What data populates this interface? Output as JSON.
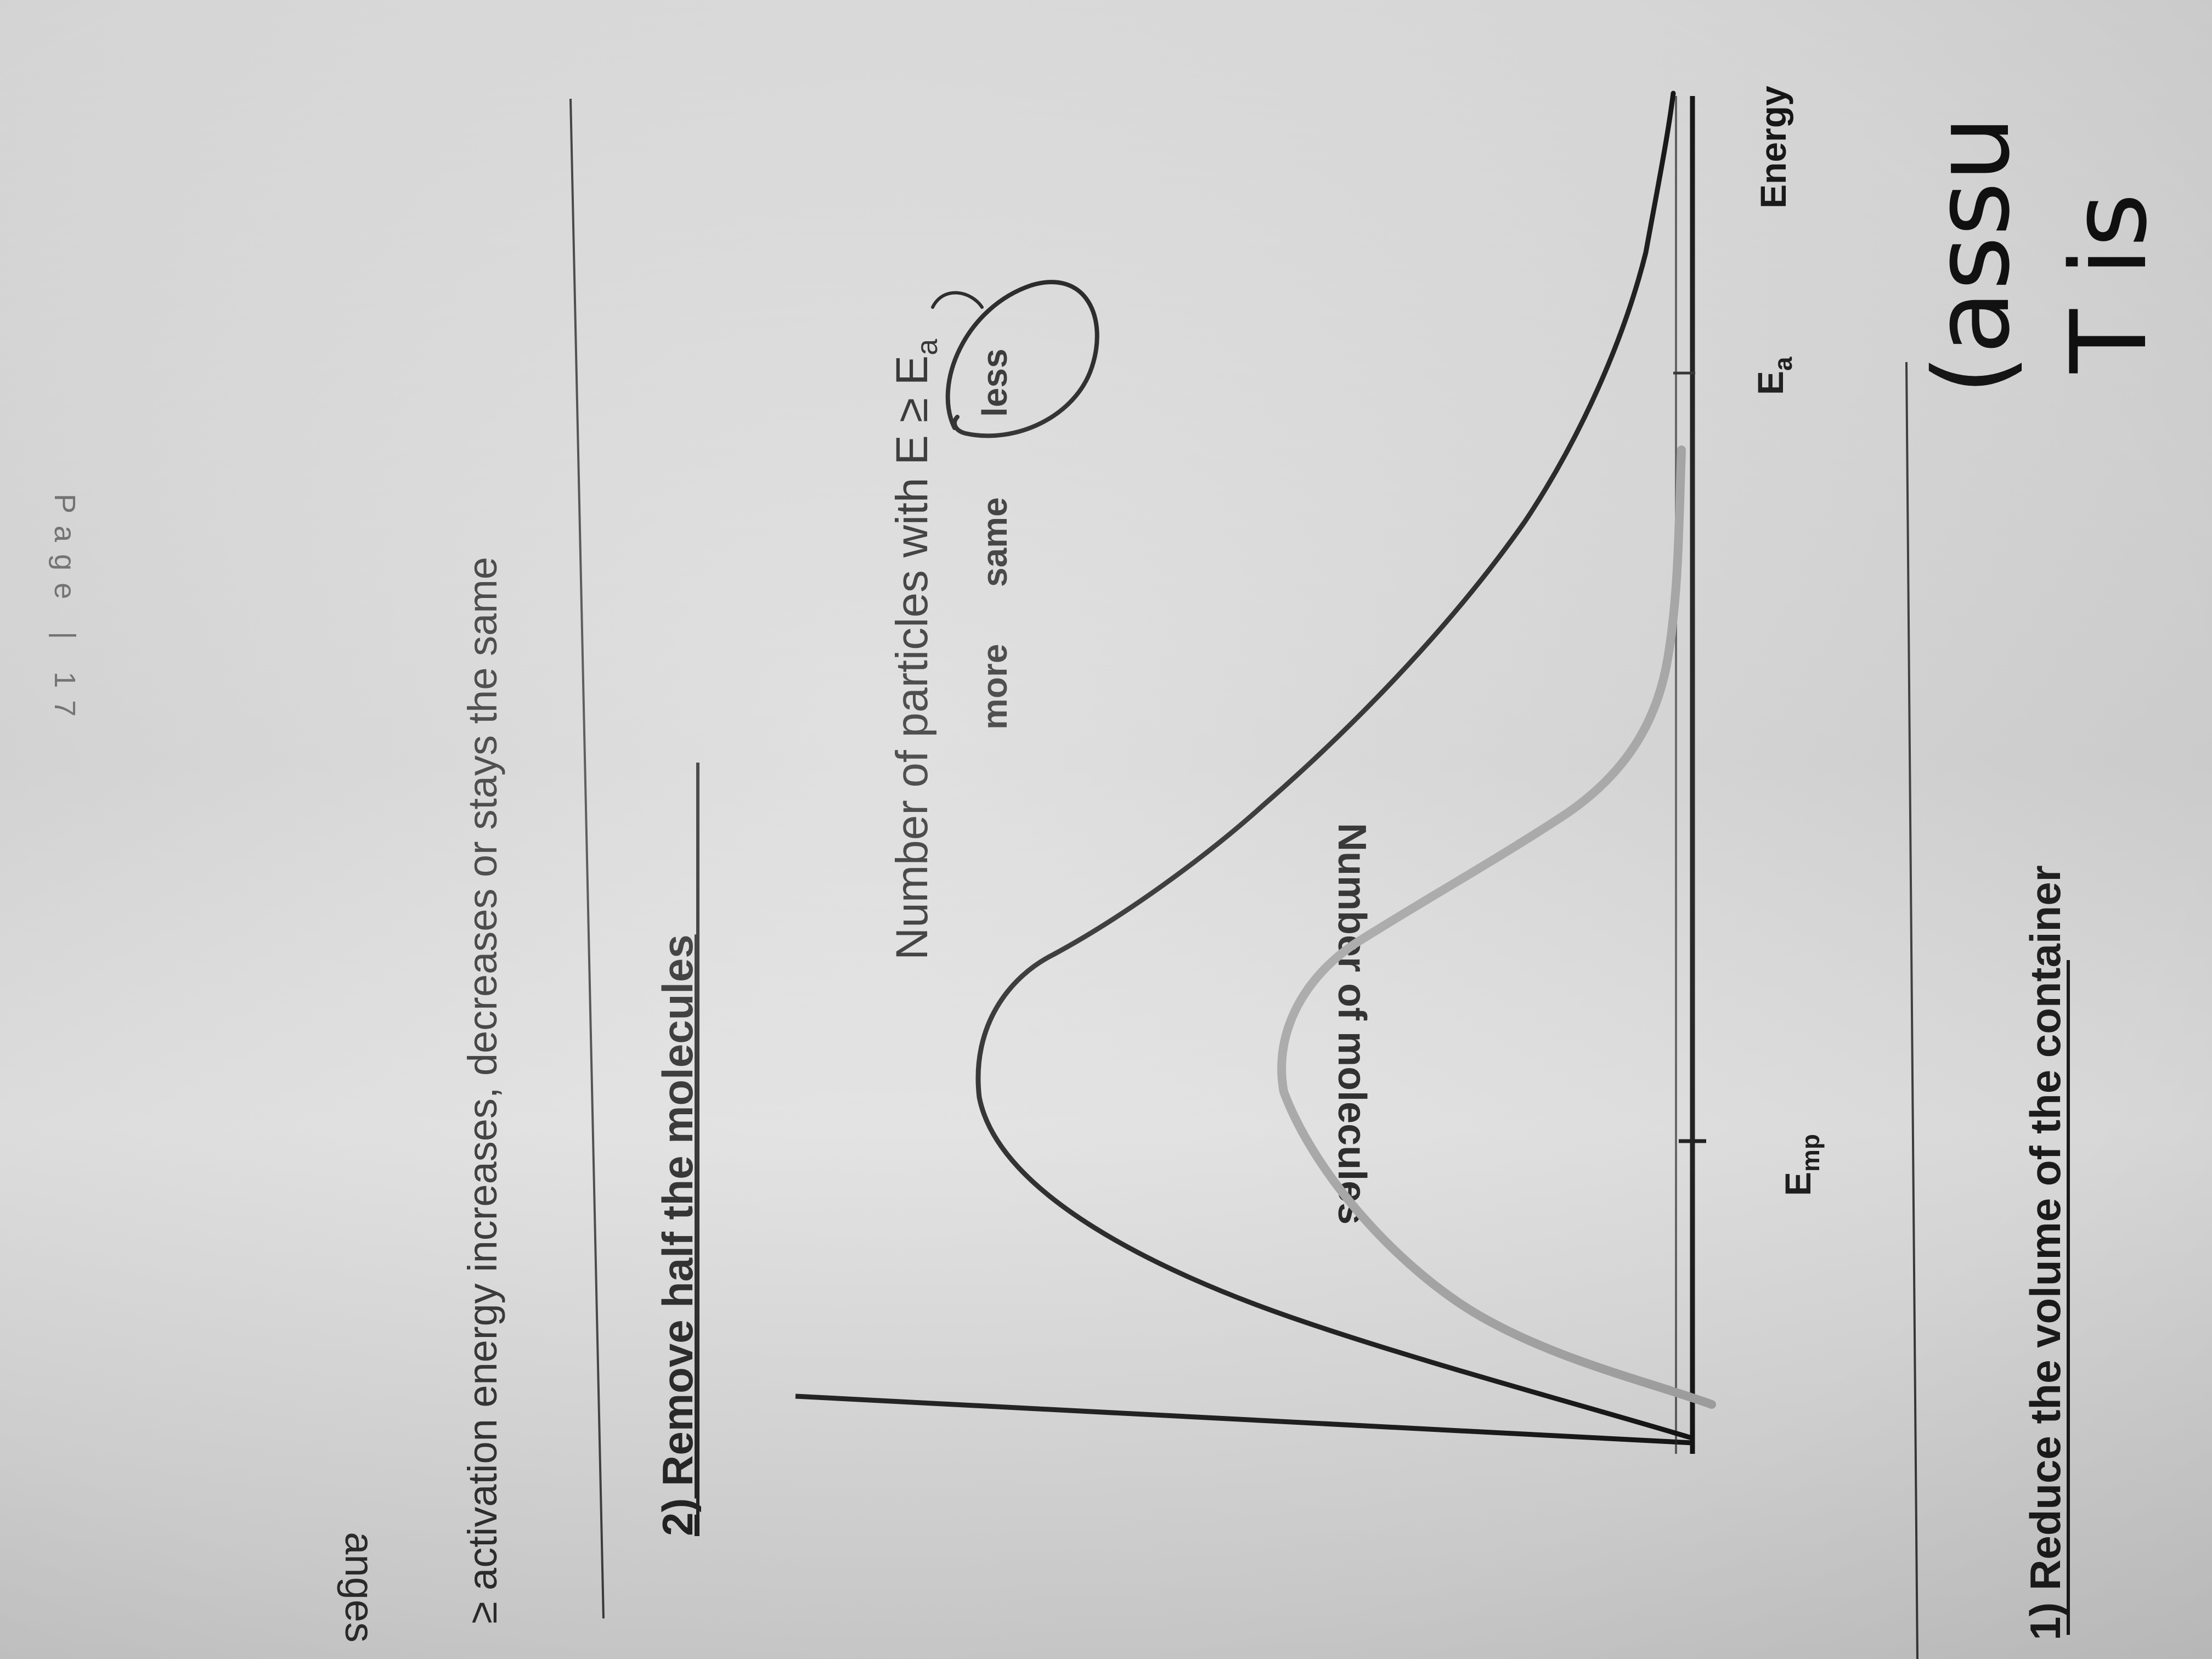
{
  "header": {
    "page_label": "Page | 17"
  },
  "section_1": {
    "heading_fragment": "anges",
    "text_fragment": "≥ activation energy increases, decreases or stays the same"
  },
  "section_2": {
    "heading": "2)  Remove half the molecules",
    "question": {
      "prefix": "Number of particles with E ≥ E",
      "subscript": "a"
    },
    "options": [
      "more",
      "same",
      "less"
    ],
    "circled_option": "less"
  },
  "graph": {
    "y_axis_label": "Number of molecules",
    "x_axis_label": "Energy",
    "tick_labels": {
      "emp": {
        "main": "E",
        "sub": "mp"
      },
      "ea": {
        "main": "E",
        "sub": "a"
      }
    }
  },
  "section_3": {
    "heading": "1)  Reduce the volume of the container"
  },
  "handwriting": {
    "line_1": "(assu",
    "line_2": "T is"
  },
  "colors": {
    "ink": "#141414",
    "grey_curve": "#a3a3a3",
    "paper": "#dcdcdc"
  }
}
